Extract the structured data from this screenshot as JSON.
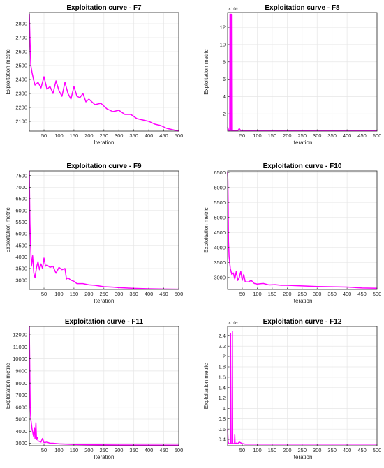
{
  "chart_data": [
    {
      "type": "line",
      "title": "Exploitation curve - F7",
      "xlabel": "Iteration",
      "ylabel": "Exploitation metric",
      "xlim": [
        1,
        500
      ],
      "ylim": [
        2030,
        2880
      ],
      "xticks": [
        50,
        100,
        150,
        200,
        250,
        300,
        350,
        400,
        450,
        500
      ],
      "yticks": [
        2100,
        2200,
        2300,
        2400,
        2500,
        2600,
        2700,
        2800
      ],
      "exponent": "",
      "grid": true,
      "series": [
        {
          "color": "#ff00ff",
          "x": [
            1,
            3,
            6,
            10,
            15,
            20,
            30,
            40,
            50,
            60,
            70,
            80,
            90,
            100,
            110,
            120,
            130,
            140,
            150,
            160,
            170,
            180,
            190,
            200,
            220,
            240,
            260,
            280,
            300,
            320,
            340,
            360,
            380,
            400,
            420,
            440,
            460,
            480,
            500
          ],
          "y": [
            2870,
            2700,
            2500,
            2450,
            2400,
            2360,
            2380,
            2340,
            2420,
            2330,
            2350,
            2300,
            2390,
            2320,
            2280,
            2380,
            2300,
            2260,
            2350,
            2280,
            2270,
            2300,
            2240,
            2260,
            2220,
            2230,
            2190,
            2170,
            2180,
            2150,
            2150,
            2120,
            2110,
            2100,
            2080,
            2070,
            2050,
            2040,
            2030
          ]
        }
      ]
    },
    {
      "type": "line",
      "title": "Exploitation curve - F8",
      "xlabel": "Iteration",
      "ylabel": "Exploitation metric",
      "xlim": [
        1,
        500
      ],
      "ylim": [
        0,
        13.7
      ],
      "xticks": [
        50,
        100,
        150,
        200,
        250,
        300,
        350,
        400,
        450,
        500
      ],
      "yticks": [
        2,
        4,
        6,
        8,
        10,
        12
      ],
      "exponent": "×10⁸",
      "grid": true,
      "series": [
        {
          "color": "#ff00ff",
          "x": [
            1,
            5,
            8,
            9,
            10,
            11,
            12,
            13,
            14,
            15,
            16,
            17,
            18,
            20,
            25,
            30,
            35,
            40,
            45,
            50,
            60,
            100,
            200,
            300,
            400,
            500
          ],
          "y": [
            0.5,
            0.05,
            0.05,
            13.5,
            0.05,
            13.5,
            0.1,
            13.5,
            0.05,
            0.05,
            13.5,
            0.05,
            0.05,
            0.05,
            0.05,
            0.05,
            0.05,
            0.3,
            0.05,
            0.05,
            0.05,
            0.05,
            0.05,
            0.05,
            0.05,
            0.05
          ]
        }
      ]
    },
    {
      "type": "line",
      "title": "Exploitation curve - F9",
      "xlabel": "Iteration",
      "ylabel": "Exploitation metric",
      "xlim": [
        1,
        500
      ],
      "ylim": [
        2600,
        7700
      ],
      "xticks": [
        50,
        100,
        150,
        200,
        250,
        300,
        350,
        400,
        450,
        500
      ],
      "yticks": [
        3000,
        3500,
        4000,
        4500,
        5000,
        5500,
        6000,
        6500,
        7000,
        7500
      ],
      "exponent": "",
      "grid": true,
      "series": [
        {
          "color": "#ff00ff",
          "x": [
            1,
            2,
            3,
            5,
            8,
            12,
            16,
            20,
            25,
            30,
            35,
            40,
            45,
            50,
            55,
            60,
            70,
            80,
            90,
            100,
            110,
            120,
            125,
            130,
            140,
            150,
            160,
            180,
            200,
            220,
            250,
            280,
            300,
            350,
            400,
            450,
            500
          ],
          "y": [
            7700,
            6500,
            5500,
            4600,
            3600,
            4050,
            3300,
            3100,
            3550,
            3800,
            3450,
            3700,
            3500,
            3950,
            3600,
            3650,
            3550,
            3600,
            3300,
            3550,
            3450,
            3500,
            3050,
            3100,
            3000,
            2950,
            2850,
            2850,
            2800,
            2780,
            2720,
            2700,
            2680,
            2650,
            2630,
            2620,
            2610
          ]
        }
      ]
    },
    {
      "type": "line",
      "title": "Exploitation curve - F10",
      "xlabel": "Iteration",
      "ylabel": "Exploitation metric",
      "xlim": [
        1,
        500
      ],
      "ylim": [
        2600,
        6550
      ],
      "xticks": [
        50,
        100,
        150,
        200,
        250,
        300,
        350,
        400,
        450,
        500
      ],
      "yticks": [
        3000,
        3500,
        4000,
        4500,
        5000,
        5500,
        6000,
        6500
      ],
      "exponent": "",
      "grid": true,
      "series": [
        {
          "color": "#ff00ff",
          "x": [
            1,
            2,
            3,
            4,
            6,
            10,
            15,
            20,
            25,
            30,
            35,
            40,
            45,
            50,
            55,
            60,
            70,
            80,
            90,
            100,
            120,
            140,
            160,
            180,
            200,
            250,
            300,
            350,
            400,
            450,
            500
          ],
          "y": [
            6500,
            6200,
            5400,
            4200,
            3700,
            3300,
            3100,
            3150,
            2950,
            3200,
            2900,
            3000,
            3200,
            2900,
            3100,
            2850,
            2850,
            2900,
            2800,
            2780,
            2800,
            2750,
            2760,
            2740,
            2740,
            2720,
            2700,
            2690,
            2680,
            2650,
            2640
          ]
        }
      ]
    },
    {
      "type": "line",
      "title": "Exploitation curve - F11",
      "xlabel": "Iteration",
      "ylabel": "Exploitation metric",
      "xlim": [
        1,
        500
      ],
      "ylim": [
        2800,
        12700
      ],
      "xticks": [
        50,
        100,
        150,
        200,
        250,
        300,
        350,
        400,
        450,
        500
      ],
      "yticks": [
        3000,
        4000,
        5000,
        6000,
        7000,
        8000,
        9000,
        10000,
        11000,
        12000
      ],
      "exponent": "",
      "grid": true,
      "series": [
        {
          "color": "#ff00ff",
          "x": [
            1,
            2,
            3,
            4,
            6,
            10,
            15,
            18,
            20,
            23,
            25,
            28,
            30,
            35,
            40,
            45,
            50,
            60,
            70,
            80,
            100,
            150,
            200,
            300,
            400,
            500
          ],
          "y": [
            12700,
            10500,
            8000,
            6000,
            5000,
            4200,
            3600,
            4300,
            3400,
            4700,
            3300,
            3500,
            3200,
            3150,
            3100,
            3400,
            3050,
            3100,
            3000,
            3000,
            2950,
            2900,
            2880,
            2860,
            2850,
            2840
          ]
        }
      ]
    },
    {
      "type": "line",
      "title": "Exploitation curve - F12",
      "xlabel": "Iteration",
      "ylabel": "Exploitation metric",
      "xlim": [
        1,
        500
      ],
      "ylim": [
        0.28,
        2.58
      ],
      "xticks": [
        50,
        100,
        150,
        200,
        250,
        300,
        350,
        400,
        450,
        500
      ],
      "yticks": [
        0.4,
        0.6,
        0.8,
        1,
        1.2,
        1.4,
        1.6,
        1.8,
        2,
        2.2,
        2.4
      ],
      "exponent": "×10⁴",
      "grid": true,
      "series": [
        {
          "color": "#ff00ff",
          "x": [
            1,
            3,
            5,
            8,
            10,
            11,
            12,
            13,
            16,
            17,
            18,
            20,
            22,
            24,
            25,
            26,
            27,
            28,
            30,
            35,
            40,
            50,
            60,
            100,
            200,
            300,
            400,
            500
          ],
          "y": [
            0.6,
            0.35,
            0.32,
            0.32,
            0.32,
            2.45,
            0.32,
            0.32,
            0.32,
            2.48,
            0.32,
            0.32,
            0.32,
            0.32,
            0.5,
            0.32,
            0.32,
            0.32,
            0.33,
            0.32,
            0.35,
            0.32,
            0.31,
            0.31,
            0.31,
            0.31,
            0.31,
            0.31
          ]
        }
      ]
    }
  ]
}
